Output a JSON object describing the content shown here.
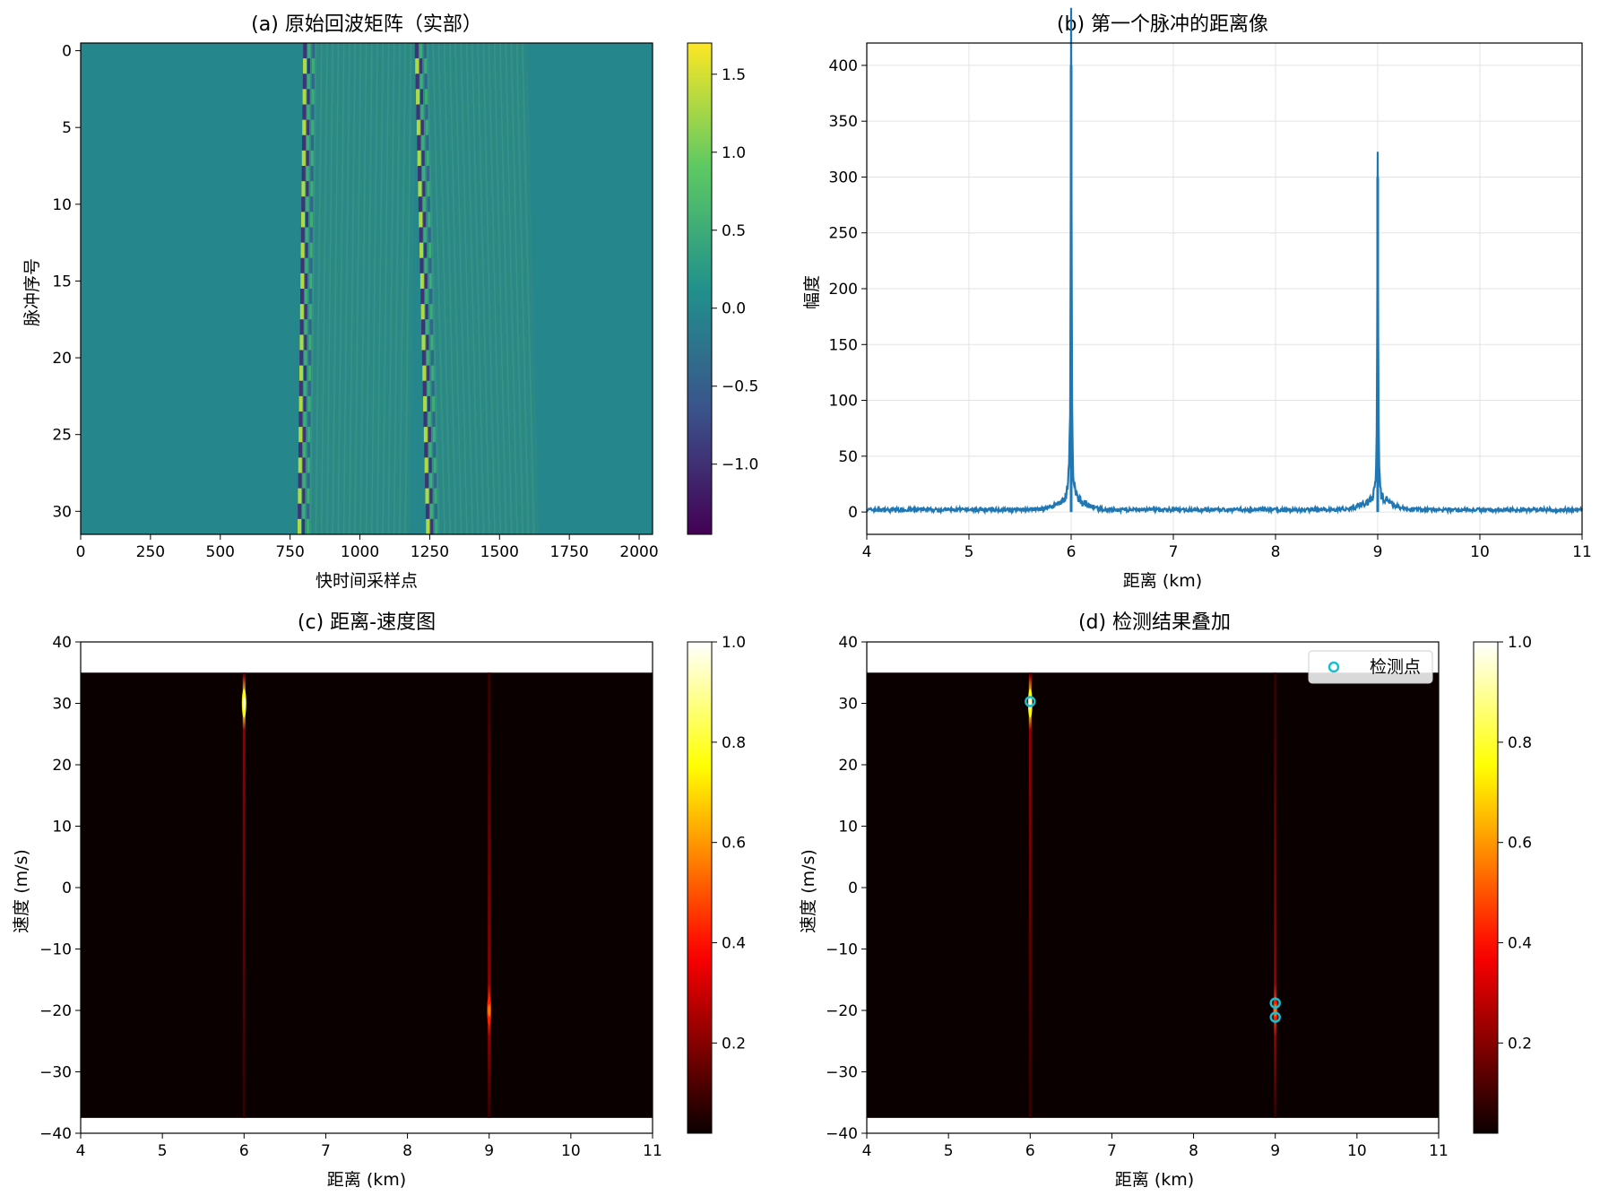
{
  "chart_data": [
    {
      "type": "heatmap",
      "title": "(a) 原始回波矩阵（实部）",
      "xlabel": "快时间采样点",
      "ylabel": "脉冲序号",
      "xlim": [
        0,
        2048
      ],
      "ylim": [
        31.5,
        -0.5
      ],
      "x_ticks": [
        0,
        250,
        500,
        750,
        1000,
        1250,
        1500,
        1750,
        2000
      ],
      "y_ticks": [
        0,
        5,
        10,
        15,
        20,
        25,
        30
      ],
      "colormap": "viridis",
      "colorbar_range": [
        -1.45,
        1.7
      ],
      "colorbar_ticks": [
        -1.0,
        -0.5,
        0.0,
        0.5,
        1.0,
        1.5
      ],
      "colorbar_tick_labels": [
        "−1.0",
        "−0.5",
        "0.0",
        "0.5",
        "1.0",
        "1.5"
      ],
      "echo_bands": [
        {
          "start_pulse0": 800,
          "start_pulse31": 780,
          "length": 400
        },
        {
          "start_pulse0": 1200,
          "start_pulse31": 1240,
          "length": 400
        }
      ]
    },
    {
      "type": "line",
      "title": "(b) 第一个脉冲的距离像",
      "xlabel": "距离 (km)",
      "ylabel": "幅度",
      "xlim": [
        4,
        11
      ],
      "ylim": [
        -20,
        420
      ],
      "x_ticks": [
        4,
        5,
        6,
        7,
        8,
        9,
        10,
        11
      ],
      "y_ticks": [
        0,
        50,
        100,
        150,
        200,
        250,
        300,
        350,
        400
      ],
      "grid": true,
      "line_color": "#1f77b4",
      "peaks": [
        {
          "x": 6.0,
          "y": 400
        },
        {
          "x": 9.0,
          "y": 300
        }
      ],
      "noise_floor": 2
    },
    {
      "type": "heatmap",
      "title": "(c) 距离-速度图",
      "xlabel": "距离 (km)",
      "ylabel": "速度 (m/s)",
      "xlim": [
        4,
        11
      ],
      "ylim": [
        -40,
        40
      ],
      "image_extent": {
        "x": [
          4,
          11
        ],
        "y": [
          -37.5,
          35
        ]
      },
      "x_ticks": [
        4,
        5,
        6,
        7,
        8,
        9,
        10,
        11
      ],
      "y_ticks": [
        -40,
        -30,
        -20,
        -10,
        0,
        10,
        20,
        30,
        40
      ],
      "colormap": "hot",
      "colorbar_range": [
        0.02,
        1.0
      ],
      "colorbar_ticks": [
        0.2,
        0.4,
        0.6,
        0.8,
        1.0
      ],
      "targets": [
        {
          "range_km": 6.0,
          "velocity": 30,
          "intensity": 1.0
        },
        {
          "range_km": 9.0,
          "velocity": -20,
          "intensity": 0.55
        }
      ]
    },
    {
      "type": "heatmap",
      "title": "(d) 检测结果叠加",
      "xlabel": "距离 (km)",
      "ylabel": "速度 (m/s)",
      "xlim": [
        4,
        11
      ],
      "ylim": [
        -40,
        40
      ],
      "image_extent": {
        "x": [
          4,
          11
        ],
        "y": [
          -37.5,
          35
        ]
      },
      "x_ticks": [
        4,
        5,
        6,
        7,
        8,
        9,
        10,
        11
      ],
      "y_ticks": [
        -40,
        -30,
        -20,
        -10,
        0,
        10,
        20,
        30,
        40
      ],
      "colormap": "hot",
      "colorbar_range": [
        0.02,
        1.0
      ],
      "colorbar_ticks": [
        0.2,
        0.4,
        0.6,
        0.8,
        1.0
      ],
      "legend": {
        "label": "检测点",
        "placement": "upper-right",
        "marker_color": "#17becf"
      },
      "targets": [
        {
          "range_km": 6.0,
          "velocity": 30,
          "intensity": 1.0
        },
        {
          "range_km": 9.0,
          "velocity": -20,
          "intensity": 0.55
        }
      ],
      "detections": [
        {
          "x": 6.0,
          "y": 30.3
        },
        {
          "x": 9.0,
          "y": -18.8
        },
        {
          "x": 9.0,
          "y": -21.1
        }
      ]
    }
  ]
}
